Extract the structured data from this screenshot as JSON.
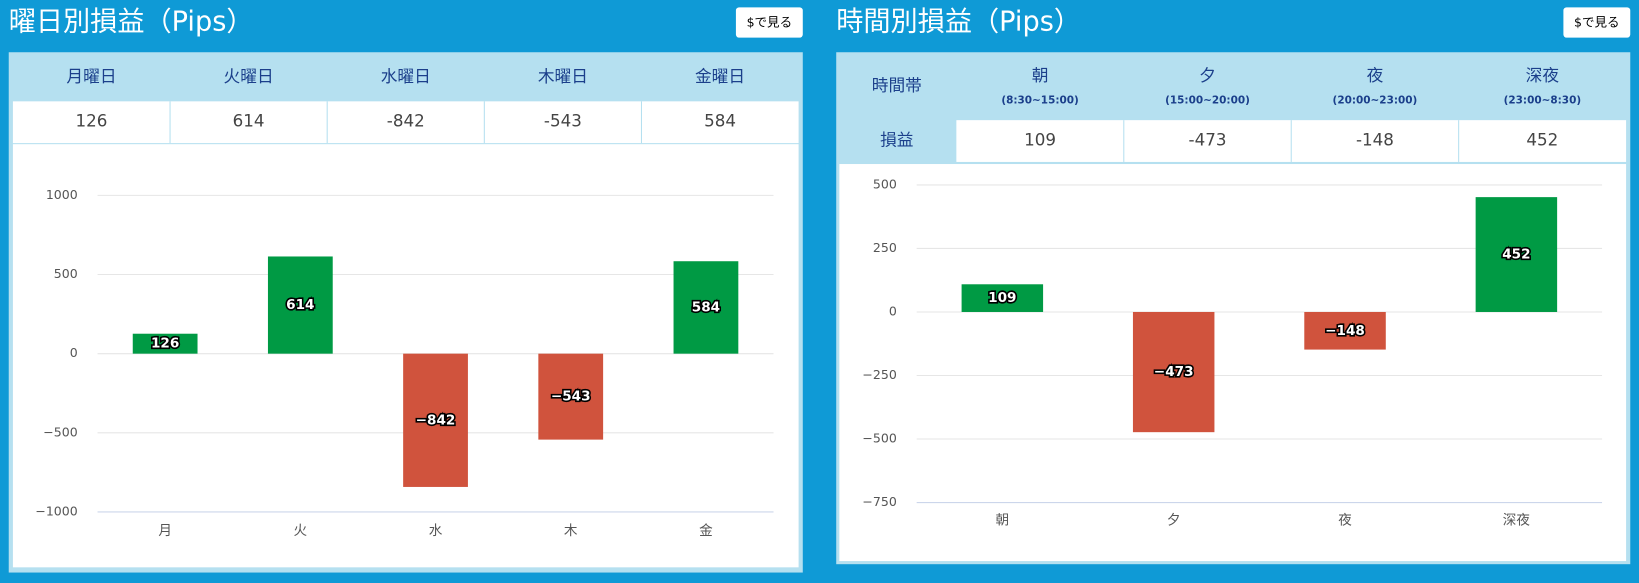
{
  "panels": [
    {
      "title": "曜日別損益（Pips）",
      "button": "$で見る",
      "table": {
        "headers": [
          "月曜日",
          "火曜日",
          "水曜日",
          "木曜日",
          "金曜日"
        ]
      }
    },
    {
      "title": "時間別損益（Pips）",
      "button": "$で見る",
      "table": {
        "corner": "時間帯",
        "row_label": "損益",
        "headers": [
          "朝",
          "夕",
          "夜",
          "深夜"
        ],
        "subheaders": [
          "(8:30~15:00)",
          "(15:00~20:00)",
          "(20:00~23:00)",
          "(23:00~8:30)"
        ]
      }
    }
  ],
  "chart_data": [
    {
      "type": "bar",
      "categories": [
        "月",
        "火",
        "水",
        "木",
        "金"
      ],
      "values": [
        126,
        614,
        -842,
        -543,
        584
      ],
      "value_labels": [
        "126",
        "614",
        "−842",
        "−543",
        "584"
      ],
      "colors": {
        "positive": "#009a44",
        "negative": "#d0533d"
      },
      "ylim": [
        -1000,
        1000
      ],
      "yticks": [
        {
          "value": -1000,
          "label": "−1000"
        },
        {
          "value": -500,
          "label": "−500"
        },
        0,
        500,
        1000
      ],
      "grid": true
    },
    {
      "type": "bar",
      "categories": [
        "朝",
        "夕",
        "夜",
        "深夜"
      ],
      "values": [
        109,
        -473,
        -148,
        452
      ],
      "value_labels": [
        "109",
        "−473",
        "−148",
        "452"
      ],
      "colors": {
        "positive": "#009a44",
        "negative": "#d0533d"
      },
      "ylim": [
        -750,
        500
      ],
      "yticks": [
        {
          "value": -750,
          "label": "−750"
        },
        {
          "value": -500,
          "label": "−500"
        },
        {
          "value": -250,
          "label": "−250"
        },
        0,
        250,
        500
      ],
      "grid": true
    }
  ]
}
